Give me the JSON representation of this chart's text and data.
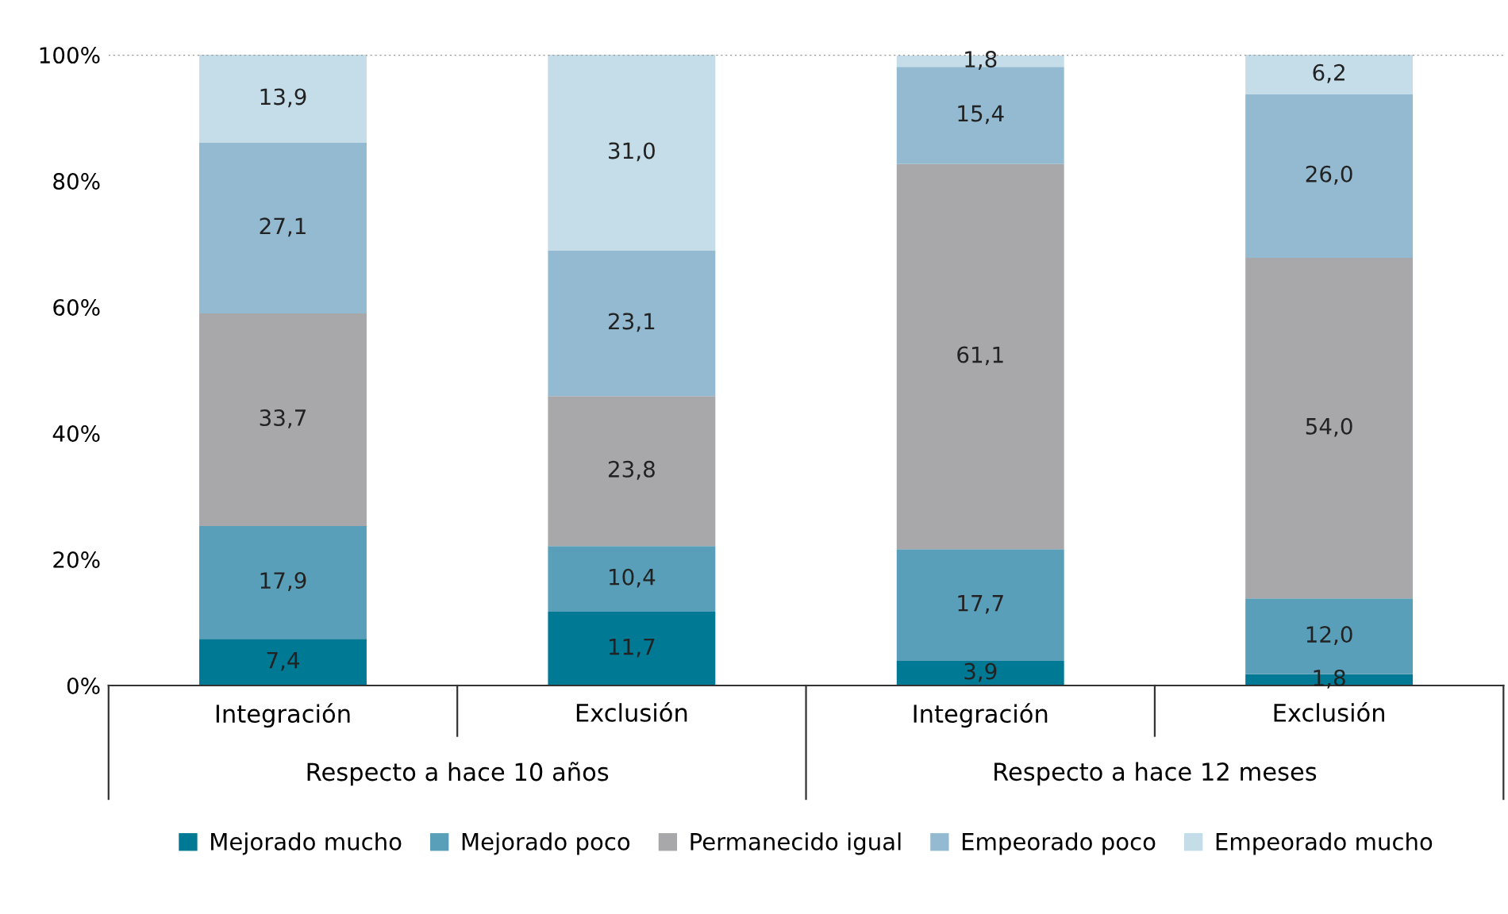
{
  "chart_data": {
    "type": "bar",
    "stacked": true,
    "categories": [
      "Integración",
      "Exclusión",
      "Integración",
      "Exclusión"
    ],
    "annotations": [
      "Respecto a hace 10 años",
      "Respecto a hace 12 meses"
    ],
    "series": [
      {
        "name": "Mejorado mucho",
        "color": "#007995",
        "values": [
          7.4,
          11.7,
          3.9,
          1.8
        ],
        "value_labels": [
          "7,4",
          "11,7",
          "3,9",
          "1,8"
        ]
      },
      {
        "name": "Mejorado poco",
        "color": "#5a9fb9",
        "values": [
          17.9,
          10.4,
          17.7,
          12.0
        ],
        "value_labels": [
          "17,9",
          "10,4",
          "17,7",
          "12,0"
        ]
      },
      {
        "name": "Permanecido igual",
        "color": "#a8a8ab",
        "values": [
          33.7,
          23.8,
          61.1,
          54.0
        ],
        "value_labels": [
          "33,7",
          "23,8",
          "61,1",
          "54,0"
        ]
      },
      {
        "name": "Empeorado poco",
        "color": "#93bad1",
        "values": [
          27.1,
          23.1,
          15.4,
          26.0
        ],
        "value_labels": [
          "27,1",
          "23,1",
          "15,4",
          "26,0"
        ]
      },
      {
        "name": "Empeorado mucho",
        "color": "#c4dde9",
        "values": [
          13.9,
          31.0,
          1.8,
          6.2
        ],
        "value_labels": [
          "13,9",
          "31,0",
          "1,8",
          "6,2"
        ]
      }
    ],
    "ylim": [
      0,
      100
    ],
    "yticks": [
      {
        "value": 0,
        "label": "0%"
      },
      {
        "value": 20,
        "label": "20%"
      },
      {
        "value": 40,
        "label": "40%"
      },
      {
        "value": 60,
        "label": "60%"
      },
      {
        "value": 80,
        "label": "80%"
      },
      {
        "value": 100,
        "label": "100%"
      }
    ],
    "legend": "bottom"
  }
}
